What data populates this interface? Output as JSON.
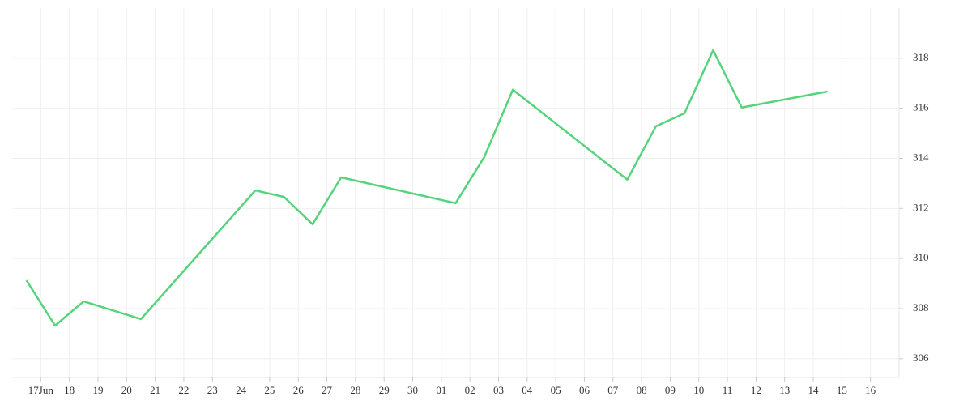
{
  "chart_data": {
    "type": "line",
    "x": [
      -0.5,
      0.5,
      1.5,
      3.5,
      7.5,
      8.5,
      9.5,
      10.5,
      14.5,
      15.5,
      16.5,
      20.5,
      21.5,
      22.5,
      23.5,
      24.5,
      27.5
    ],
    "series": [
      {
        "color": "#55d47c",
        "values": [
          309.13,
          307.32,
          308.29,
          307.58,
          312.72,
          312.46,
          311.37,
          313.24,
          312.21,
          314.05,
          316.74,
          313.15,
          315.28,
          315.8,
          318.32,
          316.03,
          316.67
        ]
      }
    ],
    "xlim": [
      -1,
      30
    ],
    "xticks": [
      {
        "value": 0,
        "label": "17Jun"
      },
      {
        "value": 1,
        "label": "18"
      },
      {
        "value": 2,
        "label": "19"
      },
      {
        "value": 3,
        "label": "20"
      },
      {
        "value": 4,
        "label": "21"
      },
      {
        "value": 5,
        "label": "22"
      },
      {
        "value": 6,
        "label": "23"
      },
      {
        "value": 7,
        "label": "24"
      },
      {
        "value": 8,
        "label": "25"
      },
      {
        "value": 9,
        "label": "26"
      },
      {
        "value": 10,
        "label": "27"
      },
      {
        "value": 11,
        "label": "28"
      },
      {
        "value": 12,
        "label": "29"
      },
      {
        "value": 13,
        "label": "30"
      },
      {
        "value": 14,
        "label": "01"
      },
      {
        "value": 15,
        "label": "02"
      },
      {
        "value": 16,
        "label": "03"
      },
      {
        "value": 17,
        "label": "04"
      },
      {
        "value": 18,
        "label": "05"
      },
      {
        "value": 19,
        "label": "06"
      },
      {
        "value": 20,
        "label": "07"
      },
      {
        "value": 21,
        "label": "08"
      },
      {
        "value": 22,
        "label": "09"
      },
      {
        "value": 23,
        "label": "10"
      },
      {
        "value": 24,
        "label": "11"
      },
      {
        "value": 25,
        "label": "12"
      },
      {
        "value": 26,
        "label": "13"
      },
      {
        "value": 27,
        "label": "14"
      },
      {
        "value": 28,
        "label": "15"
      },
      {
        "value": 29,
        "label": "16"
      }
    ],
    "ylim": [
      305.25,
      320
    ],
    "yticks": [
      306,
      308,
      310,
      312,
      314,
      316,
      318
    ],
    "grid": true
  }
}
